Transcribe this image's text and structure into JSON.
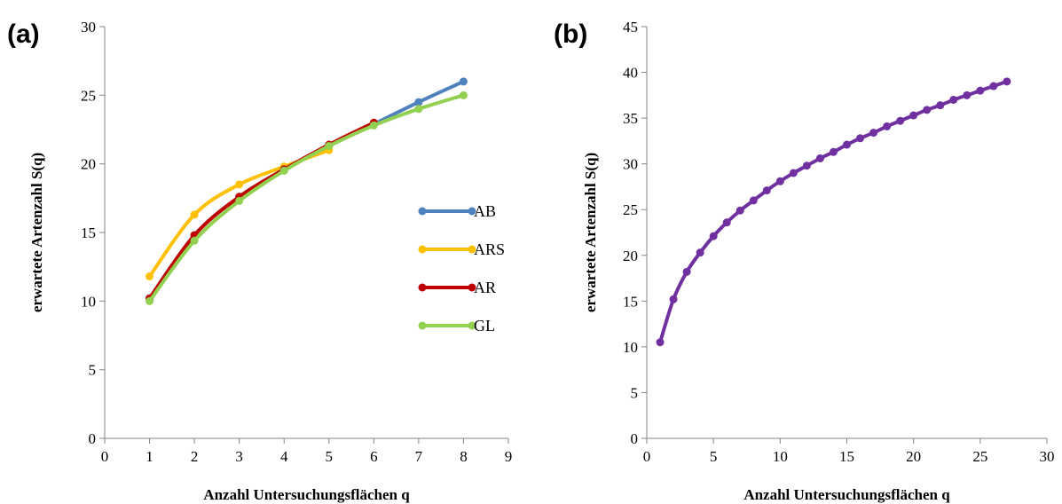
{
  "chart_data": [
    {
      "type": "line",
      "panel_label": "(a)",
      "xlabel": "Anzahl Untersuchungsflächen q",
      "ylabel": "erwartete Artenzahl S(q)",
      "xlim": [
        0,
        9
      ],
      "ylim": [
        0,
        30
      ],
      "xticks": [
        0,
        1,
        2,
        3,
        4,
        5,
        6,
        7,
        8,
        9
      ],
      "yticks": [
        0,
        5,
        10,
        15,
        20,
        25,
        30
      ],
      "grid": false,
      "legend_position": "right-center",
      "series": [
        {
          "name": "AB",
          "color": "#4F81BD",
          "x": [
            1,
            2,
            3,
            4,
            5,
            6,
            7,
            8
          ],
          "values": [
            10.2,
            14.8,
            17.6,
            19.6,
            21.3,
            22.9,
            24.5,
            26.0
          ]
        },
        {
          "name": "ARS",
          "color": "#FFC000",
          "x": [
            1,
            2,
            3,
            4,
            5
          ],
          "values": [
            11.8,
            16.3,
            18.5,
            19.8,
            21.0
          ]
        },
        {
          "name": "AR",
          "color": "#C00000",
          "x": [
            1,
            2,
            3,
            4,
            5,
            6
          ],
          "values": [
            10.2,
            14.8,
            17.6,
            19.6,
            21.4,
            23.0
          ]
        },
        {
          "name": "GL",
          "color": "#92D050",
          "x": [
            1,
            2,
            3,
            4,
            5,
            6,
            7,
            8
          ],
          "values": [
            10.0,
            14.4,
            17.3,
            19.5,
            21.3,
            22.8,
            24.0,
            25.0
          ]
        }
      ]
    },
    {
      "type": "line",
      "panel_label": "(b)",
      "xlabel": "Anzahl Untersuchungsflächen q",
      "ylabel": "erwartete Artenzahl S(q)",
      "xlim": [
        0,
        30
      ],
      "ylim": [
        0,
        45
      ],
      "xticks": [
        0,
        5,
        10,
        15,
        20,
        25,
        30
      ],
      "yticks": [
        0,
        5,
        10,
        15,
        20,
        25,
        30,
        35,
        40,
        45
      ],
      "grid": false,
      "series": [
        {
          "name": "",
          "color": "#7030A0",
          "x": [
            1,
            2,
            3,
            4,
            5,
            6,
            7,
            8,
            9,
            10,
            11,
            12,
            13,
            14,
            15,
            16,
            17,
            18,
            19,
            20,
            21,
            22,
            23,
            24,
            25,
            26,
            27
          ],
          "values": [
            10.5,
            15.2,
            18.2,
            20.3,
            22.1,
            23.6,
            24.9,
            26.0,
            27.1,
            28.1,
            29.0,
            29.8,
            30.6,
            31.3,
            32.1,
            32.8,
            33.4,
            34.1,
            34.7,
            35.3,
            35.9,
            36.4,
            37.0,
            37.5,
            38.0,
            38.5,
            39.0
          ]
        }
      ]
    }
  ]
}
